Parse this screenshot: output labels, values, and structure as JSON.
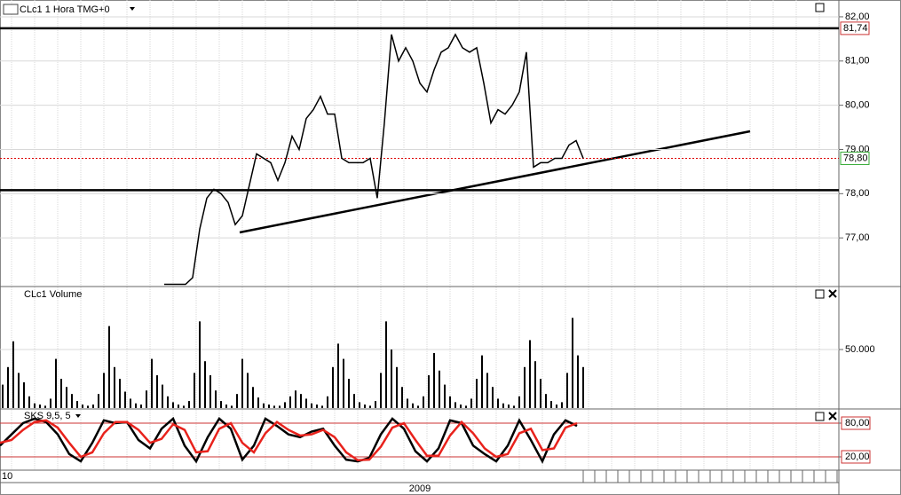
{
  "chart_data": [
    {
      "type": "line",
      "title": "CLc1 1 Hora TMG+0",
      "color": "#000000",
      "values": [
        75.95,
        75.95,
        75.95,
        75.95,
        76.1,
        77.2,
        77.9,
        78.1,
        78.0,
        77.8,
        77.3,
        77.5,
        78.2,
        78.9,
        78.8,
        78.7,
        78.3,
        78.7,
        79.3,
        79.0,
        79.7,
        79.9,
        80.2,
        79.8,
        79.8,
        78.8,
        78.7,
        78.7,
        78.7,
        78.8,
        77.9,
        79.6,
        81.6,
        81.0,
        81.3,
        81.0,
        80.5,
        80.3,
        80.8,
        81.2,
        81.3,
        81.6,
        81.3,
        81.2,
        81.3,
        80.5,
        79.6,
        79.9,
        79.8,
        80.0,
        80.3,
        81.2,
        78.6,
        78.7,
        78.7,
        78.8,
        78.8,
        79.1,
        79.2,
        78.8
      ],
      "ylim": [
        75.92,
        82.38
      ],
      "yticks": [
        {
          "value": 77,
          "label": "77,00"
        },
        {
          "value": 78,
          "label": "78,00"
        },
        {
          "value": 79,
          "label": "79,00"
        },
        {
          "value": 80,
          "label": "80,00"
        },
        {
          "value": 81,
          "label": "81,00"
        },
        {
          "value": 82,
          "label": "82,00"
        }
      ],
      "levels": [
        {
          "value": 81.74,
          "label": "81,74"
        },
        78.08
      ],
      "last_price": {
        "value": 78.8,
        "label": "78,80"
      },
      "grid": true
    },
    {
      "type": "bar",
      "title": "CLc1 Volume",
      "color": "#000000",
      "values": [
        20000,
        35000,
        57000,
        30000,
        22000,
        10000,
        4000,
        3000,
        2000,
        8000,
        42000,
        25000,
        18000,
        12000,
        6000,
        3000,
        2000,
        3000,
        12000,
        30000,
        70000,
        35000,
        25000,
        14000,
        8000,
        4000,
        3000,
        15000,
        42000,
        28000,
        20000,
        10000,
        5000,
        3000,
        2000,
        6000,
        30000,
        74000,
        40000,
        28000,
        15000,
        6000,
        3000,
        2000,
        12000,
        42000,
        30000,
        18000,
        9000,
        4000,
        3000,
        2000,
        2000,
        5000,
        10000,
        15000,
        12000,
        8000,
        4000,
        3000,
        2000,
        10000,
        35000,
        55000,
        42000,
        25000,
        12000,
        5000,
        3000,
        2000,
        6000,
        30000,
        74000,
        50000,
        35000,
        18000,
        8000,
        4000,
        2000,
        10000,
        28000,
        47000,
        32000,
        20000,
        10000,
        5000,
        3000,
        2000,
        8000,
        25000,
        45000,
        30000,
        18000,
        8000,
        4000,
        3000,
        2000,
        10000,
        35000,
        58000,
        40000,
        25000,
        12000,
        6000,
        3000,
        5000,
        30000,
        77000,
        45000,
        35000
      ],
      "ylim": [
        0,
        103030
      ],
      "yticks": [
        {
          "value": 50000,
          "label": "50.000"
        }
      ],
      "grid": true
    },
    {
      "type": "line",
      "title": "SKS 9,5, 5",
      "series": [
        {
          "color": "#000000",
          "values": [
            40,
            60,
            80,
            88,
            82,
            60,
            25,
            12,
            45,
            85,
            80,
            82,
            50,
            35,
            70,
            88,
            40,
            12,
            55,
            88,
            70,
            15,
            40,
            88,
            75,
            60,
            55,
            65,
            70,
            40,
            15,
            12,
            18,
            60,
            88,
            70,
            30,
            12,
            35,
            85,
            80,
            40,
            25,
            12,
            40,
            85,
            50,
            12,
            60,
            85,
            75
          ]
        },
        {
          "color": "#e8221c",
          "values": [
            45,
            50,
            68,
            82,
            85,
            72,
            45,
            20,
            28,
            62,
            82,
            82,
            68,
            45,
            52,
            78,
            68,
            28,
            30,
            70,
            80,
            45,
            28,
            62,
            82,
            68,
            58,
            60,
            68,
            55,
            28,
            14,
            15,
            38,
            72,
            80,
            50,
            22,
            22,
            58,
            82,
            62,
            35,
            20,
            25,
            62,
            70,
            32,
            35,
            72,
            80
          ]
        }
      ],
      "ylim": [
        -3.7,
        103.7
      ],
      "yticks": [
        {
          "value": 20,
          "label": "20,00"
        },
        {
          "value": 80,
          "label": "80,00"
        }
      ],
      "grid": true
    }
  ],
  "x_labels": [
    "10",
    "2009"
  ]
}
